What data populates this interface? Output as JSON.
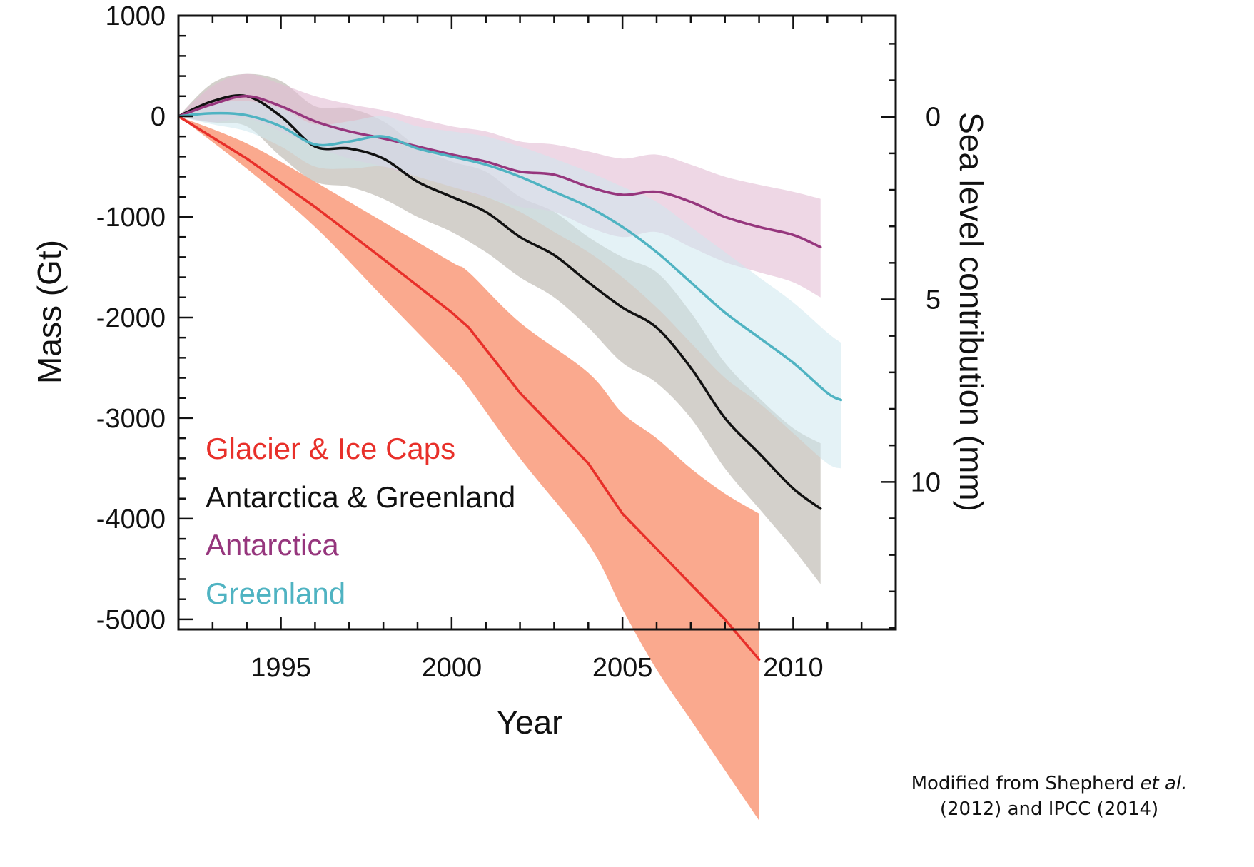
{
  "chart_data": {
    "type": "line",
    "title": "",
    "xlabel": "Year",
    "ylabel": "Mass (Gt)",
    "y2label": "Sea level contribution (mm)",
    "xlim": [
      1992,
      2013
    ],
    "ylim": [
      -5100,
      1000
    ],
    "y2lim": [
      -2.77,
      14.04
    ],
    "x_ticks": [
      1995,
      2000,
      2005,
      2010
    ],
    "y_ticks": [
      1000,
      0,
      -1000,
      -2000,
      -3000,
      -4000,
      -5000
    ],
    "y2_ticks": [
      0,
      5,
      10
    ],
    "legend_position": "bottom-left",
    "series": [
      {
        "name": "Glacier & Ice Caps",
        "color": "#e8302a",
        "band_color": "#f99a7a",
        "x": [
          1992,
          1994,
          1996,
          1998,
          2000,
          2000.5,
          2002,
          2004,
          2005,
          2006,
          2007,
          2008,
          2009
        ],
        "y": [
          0,
          -420,
          -900,
          -1420,
          -1950,
          -2100,
          -2750,
          -3450,
          -3950,
          -4300,
          -4650,
          -5000,
          -5400
        ],
        "lower": [
          0,
          -520,
          -1100,
          -1800,
          -2500,
          -2700,
          -3400,
          -4250,
          -4900,
          -5500,
          -6000,
          -6500,
          -7000
        ],
        "upper": [
          0,
          -270,
          -650,
          -1050,
          -1450,
          -1550,
          -2050,
          -2550,
          -2950,
          -3200,
          -3500,
          -3750,
          -3950
        ]
      },
      {
        "name": "Antarctica & Greenland",
        "color": "#111111",
        "band_color": "#c4c0ba",
        "x": [
          1992,
          1993,
          1994,
          1995,
          1996,
          1997,
          1998,
          1999,
          2000,
          2001,
          2002,
          2003,
          2004,
          2005,
          2006,
          2007,
          2008,
          2009,
          2010,
          2010.8
        ],
        "y": [
          0,
          150,
          200,
          0,
          -300,
          -320,
          -420,
          -650,
          -800,
          -950,
          -1200,
          -1380,
          -1650,
          -1900,
          -2100,
          -2500,
          -3000,
          -3350,
          -3700,
          -3900
        ],
        "lower": [
          0,
          -60,
          -100,
          -400,
          -650,
          -700,
          -820,
          -1000,
          -1150,
          -1350,
          -1600,
          -1800,
          -2100,
          -2450,
          -2650,
          -3000,
          -3500,
          -3900,
          -4300,
          -4650
        ],
        "upper": [
          0,
          330,
          420,
          350,
          100,
          80,
          -50,
          -300,
          -450,
          -550,
          -800,
          -950,
          -1200,
          -1400,
          -1550,
          -1950,
          -2450,
          -2800,
          -3100,
          -3250
        ]
      },
      {
        "name": "Antarctica",
        "color": "#96367d",
        "band_color": "#e3bcd3",
        "x": [
          1992,
          1993,
          1994,
          1995,
          1996,
          1997,
          1998,
          1999,
          2000,
          2001,
          2002,
          2003,
          2004,
          2005,
          2006,
          2007,
          2008,
          2009,
          2010,
          2010.8
        ],
        "y": [
          0,
          120,
          200,
          100,
          -50,
          -150,
          -220,
          -300,
          -380,
          -450,
          -550,
          -580,
          -700,
          -780,
          -750,
          -850,
          -1000,
          -1100,
          -1180,
          -1300
        ],
        "lower": [
          0,
          -60,
          -20,
          -150,
          -300,
          -420,
          -500,
          -600,
          -700,
          -800,
          -900,
          -950,
          -1100,
          -1200,
          -1150,
          -1300,
          -1450,
          -1550,
          -1650,
          -1800
        ],
        "upper": [
          0,
          300,
          420,
          320,
          200,
          120,
          60,
          -20,
          -100,
          -150,
          -250,
          -280,
          -350,
          -420,
          -380,
          -480,
          -600,
          -680,
          -750,
          -820
        ]
      },
      {
        "name": "Greenland",
        "color": "#4fb3c2",
        "band_color": "#cde8ee",
        "x": [
          1992,
          1993,
          1994,
          1995,
          1996,
          1997,
          1998,
          1999,
          2000,
          2001,
          2002,
          2003,
          2004,
          2005,
          2006,
          2007,
          2008,
          2009,
          2010,
          2011,
          2011.4
        ],
        "y": [
          0,
          30,
          10,
          -100,
          -280,
          -250,
          -200,
          -320,
          -400,
          -480,
          -600,
          -750,
          -900,
          -1100,
          -1350,
          -1650,
          -1950,
          -2200,
          -2450,
          -2750,
          -2820
        ],
        "lower": [
          0,
          -80,
          -150,
          -300,
          -500,
          -520,
          -500,
          -600,
          -700,
          -800,
          -950,
          -1150,
          -1350,
          -1600,
          -1900,
          -2250,
          -2600,
          -2850,
          -3150,
          -3450,
          -3500
        ],
        "upper": [
          0,
          120,
          150,
          80,
          -80,
          -50,
          0,
          -100,
          -150,
          -200,
          -300,
          -420,
          -550,
          -700,
          -850,
          -1100,
          -1350,
          -1600,
          -1850,
          -2150,
          -2250
        ]
      }
    ]
  },
  "credit": {
    "line1_prefix": "Modified from Shepherd ",
    "line1_em": "et al.",
    "line2": "(2012) and IPCC (2014)"
  }
}
